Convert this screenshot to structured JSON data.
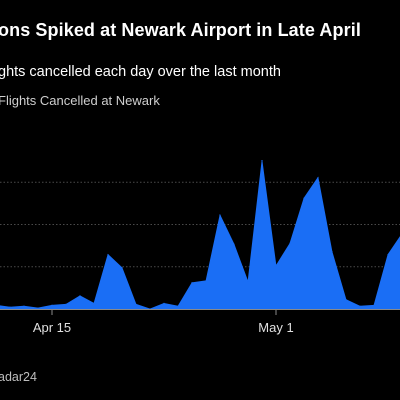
{
  "title": "ons Spiked at Newark Airport in Late April",
  "subtitle": "ghts cancelled each day over the last month",
  "legend_label": "Flights Cancelled at Newark",
  "source": "adar24",
  "colors": {
    "background": "#000000",
    "series": "#1a6ef5",
    "grid": "#4a4a4a",
    "text": "#ffffff"
  },
  "chart_data": {
    "type": "area",
    "title": "ons Spiked at Newark Airport in Late April",
    "subtitle": "ghts cancelled each day over the last month",
    "xlabel": "",
    "ylabel": "",
    "x_tick_labels": [
      {
        "day": 15,
        "label": "Apr 15"
      },
      {
        "day": 31,
        "label": "May 1"
      }
    ],
    "x_range": [
      11,
      40
    ],
    "ylim": [
      0,
      180
    ],
    "y_gridlines": [
      45,
      90,
      135
    ],
    "grid": true,
    "legend_position": "top-left",
    "series": [
      {
        "name": "Flights Cancelled at Newark",
        "x": [
          11,
          12,
          13,
          14,
          15,
          16,
          17,
          18,
          19,
          20,
          21,
          22,
          23,
          24,
          25,
          26,
          27,
          28,
          29,
          30,
          31,
          32,
          33,
          34,
          35,
          36,
          37,
          38,
          39,
          40
        ],
        "values": [
          4,
          2,
          3,
          1,
          4,
          5,
          14,
          6,
          58,
          44,
          5,
          0,
          6,
          3,
          28,
          30,
          100,
          69,
          29,
          158,
          46,
          70,
          118,
          140,
          61,
          10,
          3,
          4,
          58,
          80
        ]
      }
    ]
  }
}
